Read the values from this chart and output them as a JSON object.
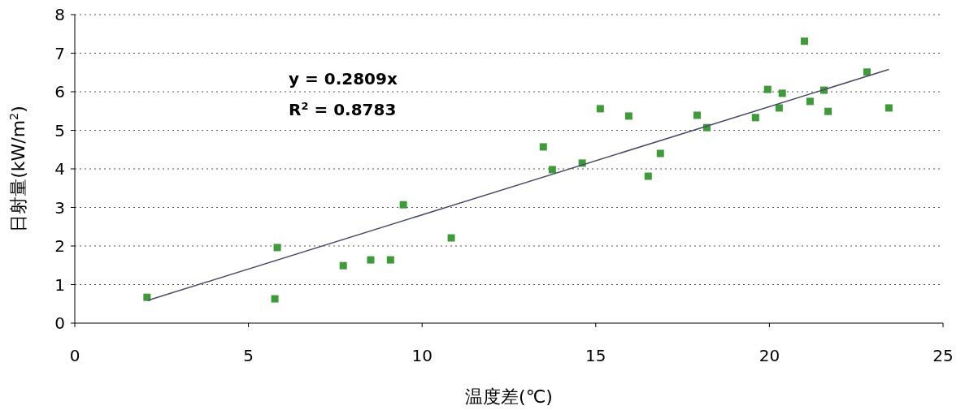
{
  "chart_data": {
    "type": "scatter",
    "xlabel": "温度差(℃)",
    "ylabel": "日射量(kW/m$^{2}$)",
    "annotations": [
      "y  =  0.2809x",
      "R$^{2}$  =  0.8783"
    ],
    "xlim": [
      0,
      25
    ],
    "xticks": [
      0,
      5,
      10,
      15,
      20,
      25
    ],
    "ylim": [
      0,
      8
    ],
    "yticks": [
      0,
      1,
      2,
      3,
      4,
      5,
      6,
      7,
      8
    ],
    "grid": "y",
    "series": [
      {
        "marker": "square",
        "color": "#3f9a3a",
        "x": [
          2.08,
          5.76,
          5.83,
          7.73,
          8.52,
          9.09,
          9.46,
          10.84,
          13.49,
          13.75,
          14.61,
          15.13,
          15.95,
          16.51,
          16.86,
          17.92,
          18.2,
          19.6,
          19.95,
          20.28,
          20.37,
          21.01,
          21.17,
          21.57,
          21.69,
          22.81,
          23.44
        ],
        "values": [
          0.67,
          0.63,
          1.96,
          1.49,
          1.64,
          1.64,
          3.07,
          2.21,
          4.57,
          3.98,
          4.15,
          5.56,
          5.37,
          3.81,
          4.4,
          5.39,
          5.07,
          5.33,
          6.06,
          5.58,
          5.96,
          7.31,
          5.75,
          6.04,
          5.49,
          6.51,
          5.58
        ]
      },
      {
        "type": "line",
        "color": "#4a4a6a",
        "line_style": "solid",
        "x": [
          2.1,
          23.44
        ],
        "values": [
          0.59,
          6.58
        ]
      }
    ]
  }
}
